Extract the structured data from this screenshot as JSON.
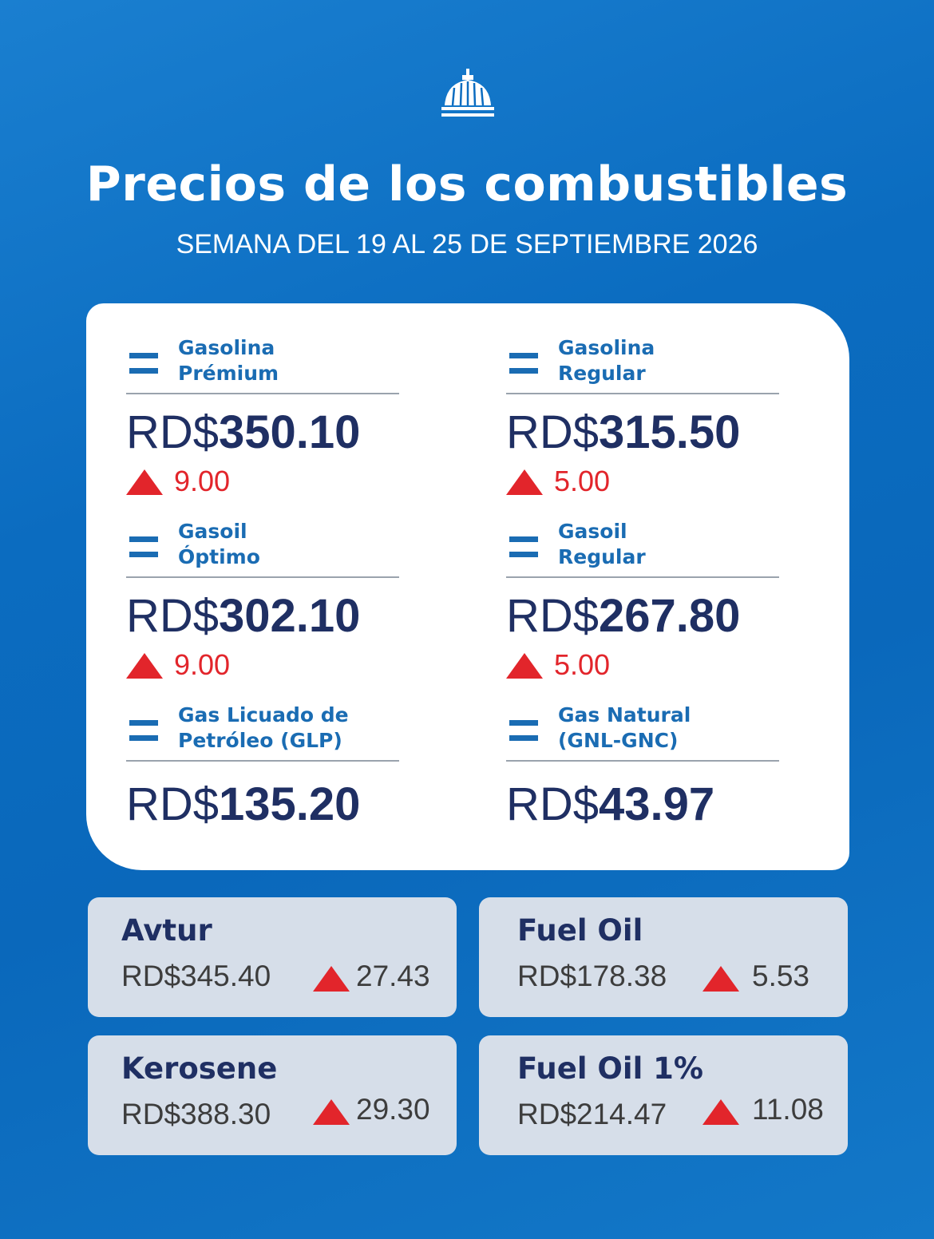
{
  "header": {
    "title": "Precios de los combustibles",
    "subtitle": "SEMANA DEL 19 AL 25 DE SEPTIEMBRE 2026"
  },
  "main_fuels": [
    {
      "name": [
        "Gasolina",
        "Prémium"
      ],
      "currency": "RD$",
      "price": "350.10",
      "change": "9.00"
    },
    {
      "name": [
        "Gasolina",
        "Regular"
      ],
      "currency": "RD$",
      "price": "315.50",
      "change": "5.00"
    },
    {
      "name": [
        "Gasoil",
        "Óptimo"
      ],
      "currency": "RD$",
      "price": "302.10",
      "change": "9.00"
    },
    {
      "name": [
        "Gasoil",
        "Regular"
      ],
      "currency": "RD$",
      "price": "267.80",
      "change": "5.00"
    },
    {
      "name": [
        "Gas Licuado de",
        "Petróleo (GLP)"
      ],
      "currency": "RD$",
      "price": "135.20"
    },
    {
      "name": [
        "Gas Natural",
        "(GNL-GNC)"
      ],
      "currency": "RD$",
      "price": "43.97"
    }
  ],
  "other_fuels": [
    {
      "name": "Avtur",
      "price": "RD$345.40",
      "change": "27.43"
    },
    {
      "name": "Fuel Oil",
      "price": "RD$178.38",
      "change": "5.53"
    },
    {
      "name": "Kerosene",
      "price": "RD$388.30",
      "change": "29.30"
    },
    {
      "name": "Fuel Oil 1%",
      "price": "RD$214.47",
      "change": "11.08"
    }
  ]
}
